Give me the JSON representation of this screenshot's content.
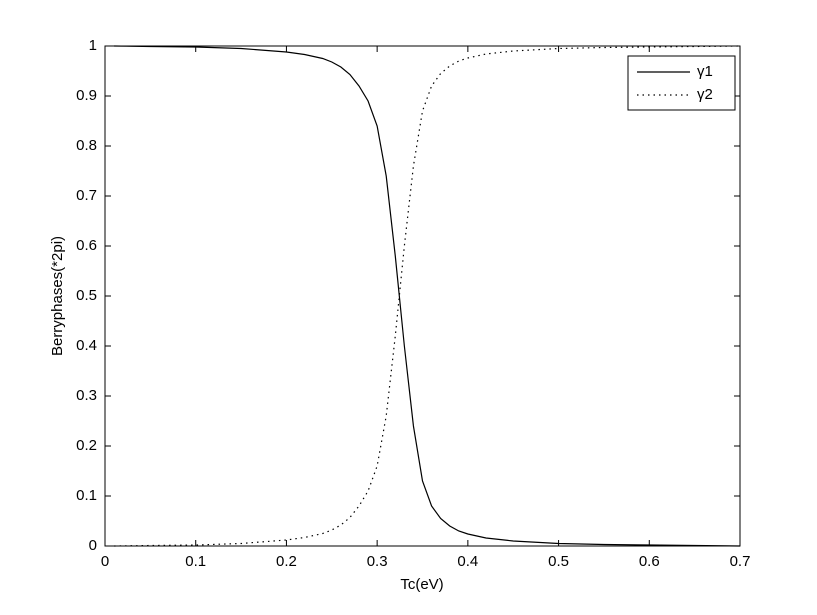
{
  "chart_data": {
    "type": "line",
    "xlabel": "Tc(eV)",
    "ylabel": "Berryphases(*2pi)",
    "x": [
      0.01,
      0.05,
      0.1,
      0.15,
      0.2,
      0.22,
      0.24,
      0.25,
      0.26,
      0.27,
      0.28,
      0.29,
      0.3,
      0.31,
      0.32,
      0.33,
      0.34,
      0.35,
      0.36,
      0.37,
      0.38,
      0.39,
      0.4,
      0.42,
      0.45,
      0.5,
      0.55,
      0.6,
      0.65,
      0.7
    ],
    "series": [
      {
        "name": "γ1",
        "color": "#000000",
        "dash": "solid",
        "values": [
          1.0,
          0.999,
          0.998,
          0.995,
          0.988,
          0.983,
          0.975,
          0.968,
          0.958,
          0.943,
          0.92,
          0.89,
          0.84,
          0.74,
          0.58,
          0.4,
          0.24,
          0.13,
          0.08,
          0.055,
          0.04,
          0.03,
          0.024,
          0.016,
          0.01,
          0.005,
          0.003,
          0.002,
          0.001,
          0.0
        ]
      },
      {
        "name": "γ2",
        "color": "#000000",
        "dash": "dotted",
        "values": [
          0.0,
          0.001,
          0.002,
          0.005,
          0.012,
          0.017,
          0.025,
          0.032,
          0.042,
          0.057,
          0.08,
          0.11,
          0.16,
          0.26,
          0.42,
          0.6,
          0.76,
          0.87,
          0.92,
          0.945,
          0.96,
          0.97,
          0.976,
          0.984,
          0.99,
          0.995,
          0.997,
          0.998,
          0.999,
          1.0
        ]
      }
    ],
    "xlim": [
      0,
      0.7
    ],
    "xticks": [
      0,
      0.1,
      0.2,
      0.3,
      0.4,
      0.5,
      0.6,
      0.7
    ],
    "ylim": [
      0,
      1
    ],
    "yticks": [
      0,
      0.1,
      0.2,
      0.3,
      0.4,
      0.5,
      0.6,
      0.7,
      0.8,
      0.9,
      1
    ],
    "grid": false,
    "legend": "top-right"
  }
}
